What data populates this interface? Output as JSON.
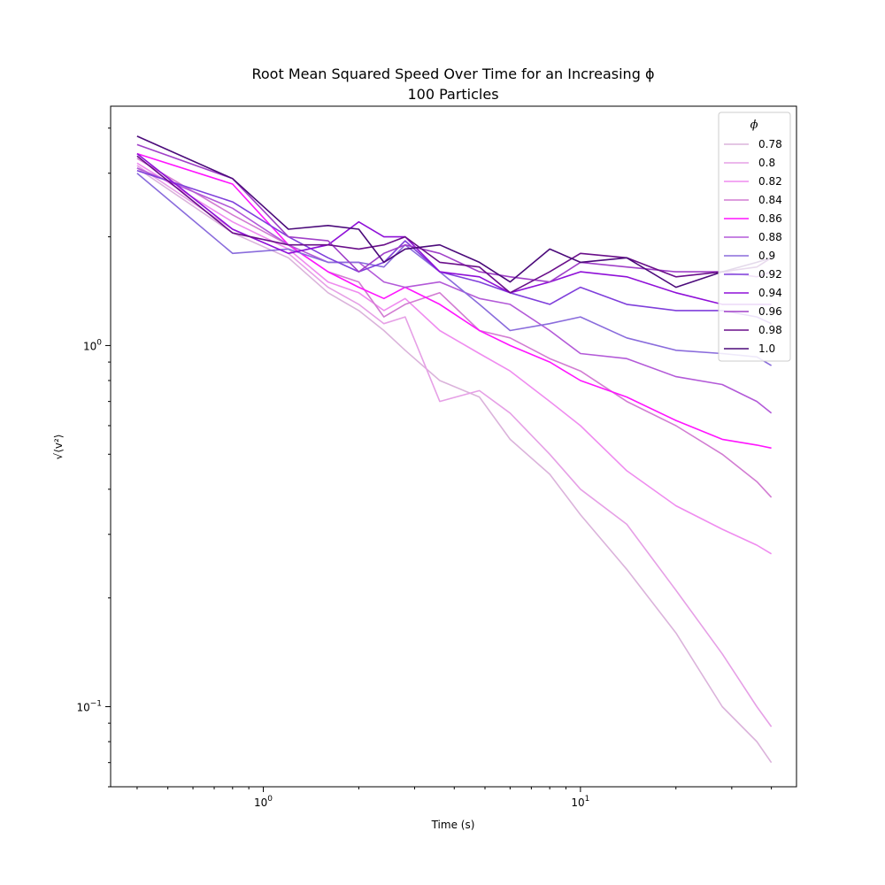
{
  "chart_data": {
    "type": "line",
    "title": "Root Mean Squared Speed Over Time for an Increasing ϕ",
    "subtitle": "100 Particles",
    "xlabel": "Time (s)",
    "ylabel": "√⟨v²⟩",
    "xscale": "log",
    "yscale": "log",
    "xlim": [
      0.33,
      48
    ],
    "ylim": [
      0.06,
      4.6
    ],
    "xticks": [
      {
        "value": 1,
        "base": "10",
        "exp": "0"
      },
      {
        "value": 10,
        "base": "10",
        "exp": "1"
      }
    ],
    "yticks": [
      {
        "value": 0.1,
        "base": "10",
        "exp": "−1"
      },
      {
        "value": 1,
        "base": "10",
        "exp": "0"
      }
    ],
    "grid": false,
    "legend": {
      "title": "ϕ",
      "placement": "top-right"
    },
    "series": [
      {
        "name": "0.78",
        "color": "#dbb3db",
        "x": [
          0.4,
          0.8,
          1.2,
          1.6,
          2.0,
          2.4,
          2.8,
          3.6,
          4.8,
          6.0,
          8.0,
          10.0,
          14.0,
          20.0,
          28.0,
          36.0,
          40.0
        ],
        "y": [
          3.1,
          2.05,
          1.75,
          1.4,
          1.25,
          1.1,
          0.97,
          0.8,
          0.72,
          0.55,
          0.44,
          0.34,
          0.24,
          0.16,
          0.1,
          0.08,
          0.07
        ]
      },
      {
        "name": "0.8",
        "color": "#e6a0e6",
        "x": [
          0.4,
          0.8,
          1.2,
          1.6,
          2.0,
          2.4,
          2.8,
          3.6,
          4.8,
          6.0,
          8.0,
          10.0,
          14.0,
          20.0,
          28.0,
          36.0,
          40.0
        ],
        "y": [
          3.15,
          2.1,
          1.8,
          1.45,
          1.3,
          1.15,
          1.2,
          0.7,
          0.75,
          0.65,
          0.5,
          0.4,
          0.32,
          0.21,
          0.14,
          0.1,
          0.088
        ]
      },
      {
        "name": "0.82",
        "color": "#ef8cef",
        "x": [
          0.4,
          0.8,
          1.2,
          1.6,
          2.0,
          2.4,
          2.8,
          3.6,
          4.8,
          6.0,
          8.0,
          10.0,
          14.0,
          20.0,
          28.0,
          36.0,
          40.0
        ],
        "y": [
          3.2,
          2.2,
          1.85,
          1.5,
          1.4,
          1.25,
          1.35,
          1.1,
          0.95,
          0.85,
          0.7,
          0.6,
          0.45,
          0.36,
          0.31,
          0.28,
          0.265
        ]
      },
      {
        "name": "0.84",
        "color": "#d27cd2",
        "x": [
          0.4,
          0.8,
          1.2,
          1.6,
          2.0,
          2.4,
          2.8,
          3.6,
          4.8,
          6.0,
          8.0,
          10.0,
          14.0,
          20.0,
          28.0,
          36.0,
          40.0
        ],
        "y": [
          3.3,
          2.3,
          1.9,
          1.6,
          1.5,
          1.2,
          1.3,
          1.4,
          1.1,
          1.05,
          0.92,
          0.85,
          0.7,
          0.6,
          0.5,
          0.42,
          0.38
        ]
      },
      {
        "name": "0.86",
        "color": "#ff14ff",
        "x": [
          0.4,
          0.8,
          1.2,
          1.6,
          2.0,
          2.4,
          2.8,
          3.6,
          4.8,
          6.0,
          8.0,
          10.0,
          14.0,
          20.0,
          28.0,
          36.0,
          40.0
        ],
        "y": [
          3.4,
          2.8,
          1.9,
          1.6,
          1.45,
          1.35,
          1.45,
          1.3,
          1.1,
          1.0,
          0.9,
          0.8,
          0.72,
          0.62,
          0.55,
          0.53,
          0.52
        ]
      },
      {
        "name": "0.88",
        "color": "#b35ad8",
        "x": [
          0.4,
          0.8,
          1.2,
          1.6,
          2.0,
          2.4,
          2.8,
          3.6,
          4.8,
          6.0,
          8.0,
          10.0,
          14.0,
          20.0,
          28.0,
          36.0,
          40.0
        ],
        "y": [
          3.1,
          2.4,
          1.9,
          1.7,
          1.7,
          1.5,
          1.45,
          1.5,
          1.35,
          1.3,
          1.1,
          0.95,
          0.92,
          0.82,
          0.78,
          0.7,
          0.65
        ]
      },
      {
        "name": "0.9",
        "color": "#8a6cdc",
        "x": [
          0.4,
          0.8,
          1.2,
          1.6,
          2.0,
          2.4,
          2.8,
          3.6,
          4.8,
          6.0,
          8.0,
          10.0,
          14.0,
          20.0,
          28.0,
          36.0,
          40.0
        ],
        "y": [
          3.0,
          1.8,
          1.85,
          1.7,
          1.7,
          1.65,
          1.9,
          1.6,
          1.3,
          1.1,
          1.15,
          1.2,
          1.05,
          0.97,
          0.95,
          0.93,
          0.88
        ]
      },
      {
        "name": "0.92",
        "color": "#7f3fdb",
        "x": [
          0.4,
          0.8,
          1.2,
          1.6,
          2.0,
          2.4,
          2.8,
          3.6,
          4.8,
          6.0,
          8.0,
          10.0,
          14.0,
          20.0,
          28.0,
          36.0,
          40.0
        ],
        "y": [
          3.05,
          2.5,
          2.0,
          1.75,
          1.6,
          1.7,
          1.95,
          1.6,
          1.5,
          1.4,
          1.3,
          1.45,
          1.3,
          1.25,
          1.25,
          1.2,
          1.15
        ]
      },
      {
        "name": "0.94",
        "color": "#8f10d8",
        "x": [
          0.4,
          0.8,
          1.2,
          1.6,
          2.0,
          2.4,
          2.8,
          3.6,
          4.8,
          6.0,
          8.0,
          10.0,
          14.0,
          20.0,
          28.0,
          36.0,
          40.0
        ],
        "y": [
          3.4,
          2.1,
          1.8,
          1.9,
          2.2,
          2.0,
          2.0,
          1.6,
          1.55,
          1.4,
          1.5,
          1.6,
          1.55,
          1.4,
          1.3,
          1.3,
          1.3
        ]
      },
      {
        "name": "0.96",
        "color": "#a040c8",
        "x": [
          0.4,
          0.8,
          1.2,
          1.6,
          2.0,
          2.4,
          2.8,
          3.6,
          4.8,
          6.0,
          8.0,
          10.0,
          14.0,
          20.0,
          28.0,
          36.0,
          40.0
        ],
        "y": [
          3.6,
          2.9,
          2.0,
          1.95,
          1.6,
          1.8,
          1.9,
          1.8,
          1.6,
          1.55,
          1.5,
          1.7,
          1.65,
          1.6,
          1.6,
          1.55,
          1.6
        ]
      },
      {
        "name": "0.98",
        "color": "#6a0f8a",
        "x": [
          0.4,
          0.8,
          1.2,
          1.6,
          2.0,
          2.4,
          2.8,
          3.6,
          4.8,
          6.0,
          8.0,
          10.0,
          14.0,
          20.0,
          28.0,
          36.0,
          40.0
        ],
        "y": [
          3.35,
          2.05,
          1.9,
          1.9,
          1.85,
          1.9,
          2.0,
          1.7,
          1.65,
          1.4,
          1.6,
          1.8,
          1.75,
          1.55,
          1.6,
          1.65,
          1.75
        ]
      },
      {
        "name": "1.0",
        "color": "#4b0a7a",
        "x": [
          0.4,
          0.8,
          1.2,
          1.6,
          2.0,
          2.4,
          2.8,
          3.6,
          4.8,
          6.0,
          8.0,
          10.0,
          14.0,
          20.0,
          28.0,
          36.0,
          40.0
        ],
        "y": [
          3.8,
          2.9,
          2.1,
          2.15,
          2.1,
          1.7,
          1.85,
          1.9,
          1.7,
          1.5,
          1.85,
          1.7,
          1.75,
          1.45,
          1.6,
          1.7,
          1.75
        ]
      }
    ]
  }
}
